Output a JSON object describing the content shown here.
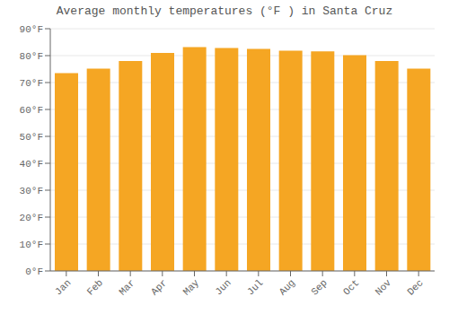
{
  "chart_data": {
    "type": "bar",
    "title": "Average monthly temperatures (°F ) in Santa Cruz",
    "categories": [
      "Jan",
      "Feb",
      "Mar",
      "Apr",
      "May",
      "Jun",
      "Jul",
      "Aug",
      "Sep",
      "Oct",
      "Nov",
      "Dec"
    ],
    "values": [
      73.5,
      75.2,
      78.0,
      81.0,
      83.2,
      82.8,
      82.5,
      81.8,
      81.6,
      80.2,
      78.0,
      75.2
    ],
    "color": "#F5A623",
    "ylim": [
      0,
      90
    ],
    "yticks": [
      {
        "value": 0,
        "label": "0°F"
      },
      {
        "value": 10,
        "label": "10°F"
      },
      {
        "value": 20,
        "label": "20°F"
      },
      {
        "value": 30,
        "label": "30°F"
      },
      {
        "value": 40,
        "label": "40°F"
      },
      {
        "value": 50,
        "label": "50°F"
      },
      {
        "value": 60,
        "label": "60°F"
      },
      {
        "value": 70,
        "label": "70°F"
      },
      {
        "value": 80,
        "label": "80°F"
      },
      {
        "value": 90,
        "label": "90°F"
      }
    ],
    "grid": true
  }
}
